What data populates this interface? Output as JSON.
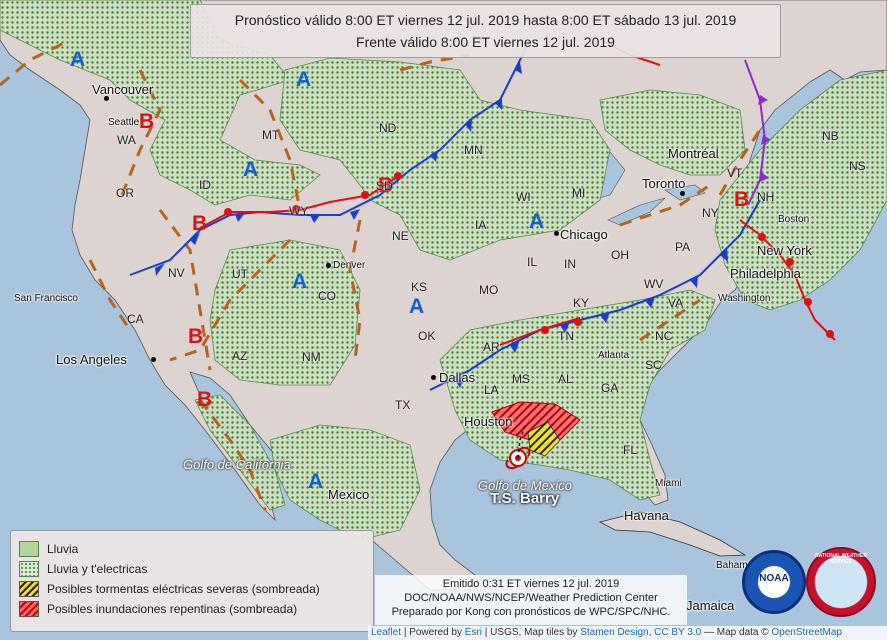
{
  "header": {
    "line1": "Pronóstico válido 8:00 ET viernes 12 jul. 2019 hasta 8:00 ET sábado 13 jul. 2019",
    "line2": "Frente válido 8:00 ET viernes 12 jul. 2019"
  },
  "legend": {
    "items": [
      {
        "label": "Lluvia",
        "kind": "rain"
      },
      {
        "label": "Lluvia y t'electricas",
        "kind": "tstorm"
      },
      {
        "label": "Posibles tormentas eléctricas severas (sombreada)",
        "kind": "severe"
      },
      {
        "label": "Posibles inundaciones repentinas (sombreada)",
        "kind": "flood"
      }
    ]
  },
  "issued": {
    "line1": "Emitido 0:31 ET viernes 12 jul. 2019",
    "line2": "DOC/NOAA/NWS/NCEP/Weather Prediction Center",
    "line3": "Preparado por Kong con pronósticos de WPC/SPC/NHC."
  },
  "attribution": {
    "leaflet": "Leaflet",
    "powered": "| Powered by",
    "esri": "Esri",
    "usgs": "| USGS, Map tiles by",
    "stamen": "Stamen Design",
    "cc": "CC BY 3.0",
    "mapdata": "— Map data ©",
    "osm": "OpenStreetMap"
  },
  "storm": {
    "name": "T.S. Barry"
  },
  "gulfs": {
    "mexico": "Golfo de Mexico",
    "california": "Golfo de California"
  },
  "cities": {
    "vancouver": "Vancouver",
    "seattle": "Seattle",
    "sanfrancisco": "San Francisco",
    "losangeles": "Los Angeles",
    "denver": "Denver",
    "dallas": "Dallas",
    "houston": "Houston",
    "chicago": "Chicago",
    "toronto": "Toronto",
    "montreal": "Montréal",
    "boston": "Boston",
    "newyork": "New York",
    "philadelphia": "Philadelphia",
    "washington": "Washington",
    "atlanta": "Atlanta",
    "miami": "Miami",
    "havana": "Havana",
    "mexico": "Mexico",
    "jamaica": "Jamaica",
    "bahamas": "Bahamas"
  },
  "states": {
    "WA": "WA",
    "OR": "OR",
    "CA": "CA",
    "NV": "NV",
    "ID": "ID",
    "MT": "MT",
    "WY": "WY",
    "UT": "UT",
    "CO": "CO",
    "AZ": "AZ",
    "NM": "NM",
    "ND": "ND",
    "SD": "SD",
    "NE": "NE",
    "KS": "KS",
    "OK": "OK",
    "TX": "TX",
    "MN": "MN",
    "IA": "IA",
    "MO": "MO",
    "AR": "AR",
    "LA": "LA",
    "MS": "MS",
    "AL": "AL",
    "GA": "GA",
    "FL": "FL",
    "SC": "SC",
    "NC": "NC",
    "TN": "TN",
    "KY": "KY",
    "IL": "IL",
    "IN": "IN",
    "OH": "OH",
    "MI": "MI",
    "WI": "WI",
    "PA": "PA",
    "NY": "NY",
    "VA": "VA",
    "WV": "WV",
    "VT": "VT",
    "NH": "NH",
    "NB": "NB",
    "NS": "NS"
  },
  "pressure": {
    "high": "A",
    "low": "B"
  },
  "logos": {
    "noaa": "NOAA",
    "nws": "NATIONAL WEATHER SERVICE"
  },
  "colors": {
    "rain": "#b5d4a0",
    "tstorm_dot": "#3d7a32",
    "cold_front": "#1a3ccf",
    "warm_front": "#e01010",
    "occluded": "#8b2bd0",
    "trough": "#b5651d",
    "high": "#1060d0",
    "low": "#d61414"
  }
}
